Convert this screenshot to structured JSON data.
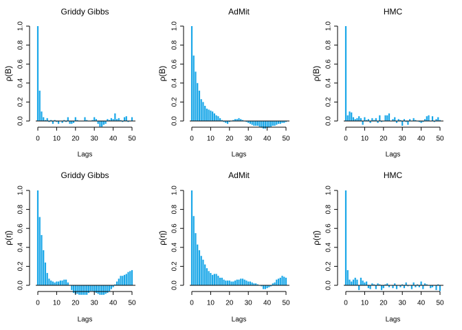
{
  "chart_data": [
    {
      "type": "bar",
      "title": "Griddy Gibbs",
      "xlabel": "Lags",
      "ylabel": "ρ(B)",
      "ylim": [
        0,
        1
      ],
      "yticks": [
        "0.0",
        "0.2",
        "0.4",
        "0.6",
        "0.8",
        "1.0"
      ],
      "xticks": [
        "0",
        "10",
        "20",
        "30",
        "40",
        "50"
      ],
      "x": [
        0,
        1,
        2,
        3,
        4,
        5,
        6,
        7,
        8,
        9,
        10,
        11,
        12,
        13,
        14,
        15,
        16,
        17,
        18,
        19,
        20,
        21,
        22,
        23,
        24,
        25,
        26,
        27,
        28,
        29,
        30,
        31,
        32,
        33,
        34,
        35,
        36,
        37,
        38,
        39,
        40,
        41,
        42,
        43,
        44,
        45,
        46,
        47,
        48,
        49,
        50
      ],
      "values": [
        1.0,
        0.32,
        0.1,
        0.04,
        0.01,
        0.03,
        -0.01,
        0.01,
        -0.03,
        0.01,
        -0.01,
        -0.03,
        0.0,
        -0.02,
        0.01,
        -0.01,
        0.04,
        -0.03,
        -0.03,
        -0.02,
        0.04,
        0.01,
        0.0,
        0.0,
        0.0,
        0.04,
        0.01,
        0.0,
        0.0,
        0.01,
        0.04,
        0.02,
        -0.03,
        -0.06,
        -0.06,
        -0.04,
        -0.03,
        0.02,
        0.01,
        0.03,
        0.02,
        0.08,
        0.02,
        0.03,
        0.01,
        -0.01,
        0.04,
        0.05,
        -0.01,
        0.0,
        0.04
      ]
    },
    {
      "type": "bar",
      "title": "AdMit",
      "xlabel": "Lags",
      "ylabel": "ρ(B)",
      "ylim": [
        0,
        1
      ],
      "yticks": [
        "0.0",
        "0.2",
        "0.4",
        "0.6",
        "0.8",
        "1.0"
      ],
      "xticks": [
        "0",
        "10",
        "20",
        "30",
        "40",
        "50"
      ],
      "x": [
        0,
        1,
        2,
        3,
        4,
        5,
        6,
        7,
        8,
        9,
        10,
        11,
        12,
        13,
        14,
        15,
        16,
        17,
        18,
        19,
        20,
        21,
        22,
        23,
        24,
        25,
        26,
        27,
        28,
        29,
        30,
        31,
        32,
        33,
        34,
        35,
        36,
        37,
        38,
        39,
        40,
        41,
        42,
        43,
        44,
        45,
        46,
        47,
        48,
        49,
        50
      ],
      "values": [
        1.0,
        0.69,
        0.52,
        0.4,
        0.32,
        0.23,
        0.2,
        0.16,
        0.13,
        0.12,
        0.11,
        0.1,
        0.08,
        0.06,
        0.05,
        0.03,
        0.01,
        -0.01,
        -0.02,
        -0.03,
        -0.01,
        0.0,
        0.01,
        0.02,
        0.02,
        0.03,
        0.02,
        0.01,
        0.0,
        -0.01,
        -0.02,
        -0.03,
        -0.04,
        -0.05,
        -0.05,
        -0.05,
        -0.06,
        -0.07,
        -0.08,
        -0.08,
        -0.07,
        -0.07,
        -0.06,
        -0.05,
        -0.05,
        -0.04,
        -0.03,
        -0.03,
        -0.02,
        -0.02,
        -0.01
      ]
    },
    {
      "type": "bar",
      "title": "HMC",
      "xlabel": "Lags",
      "ylabel": "ρ(B)",
      "ylim": [
        0,
        1
      ],
      "yticks": [
        "0.0",
        "0.2",
        "0.4",
        "0.6",
        "0.8",
        "1.0"
      ],
      "xticks": [
        "0",
        "10",
        "20",
        "30",
        "40",
        "50"
      ],
      "x": [
        0,
        1,
        2,
        3,
        4,
        5,
        6,
        7,
        8,
        9,
        10,
        11,
        12,
        13,
        14,
        15,
        16,
        17,
        18,
        19,
        20,
        21,
        22,
        23,
        24,
        25,
        26,
        27,
        28,
        29,
        30,
        31,
        32,
        33,
        34,
        35,
        36,
        37,
        38,
        39,
        40,
        41,
        42,
        43,
        44,
        45,
        46,
        47,
        48,
        49,
        50
      ],
      "values": [
        1.0,
        0.06,
        0.1,
        0.09,
        0.04,
        0.02,
        0.03,
        0.05,
        0.03,
        -0.04,
        0.04,
        0.01,
        0.02,
        -0.02,
        0.03,
        0.01,
        0.03,
        -0.02,
        0.06,
        -0.01,
        0.0,
        0.06,
        0.06,
        0.08,
        0.0,
        0.02,
        0.04,
        -0.02,
        0.02,
        0.01,
        -0.05,
        0.02,
        -0.01,
        -0.04,
        0.02,
        0.0,
        0.03,
        0.01,
        0.0,
        -0.01,
        -0.02,
        -0.01,
        0.02,
        0.05,
        0.06,
        0.0,
        0.05,
        -0.01,
        0.02,
        0.04,
        0.01
      ]
    },
    {
      "type": "bar",
      "title": "Griddy Gibbs",
      "xlabel": "Lags",
      "ylabel": "ρ(η̄)",
      "ylim": [
        0,
        1
      ],
      "yticks": [
        "0.0",
        "0.2",
        "0.4",
        "0.6",
        "0.8",
        "1.0"
      ],
      "xticks": [
        "0",
        "10",
        "20",
        "30",
        "40",
        "50"
      ],
      "x": [
        0,
        1,
        2,
        3,
        4,
        5,
        6,
        7,
        8,
        9,
        10,
        11,
        12,
        13,
        14,
        15,
        16,
        17,
        18,
        19,
        20,
        21,
        22,
        23,
        24,
        25,
        26,
        27,
        28,
        29,
        30,
        31,
        32,
        33,
        34,
        35,
        36,
        37,
        38,
        39,
        40,
        41,
        42,
        43,
        44,
        45,
        46,
        47,
        48,
        49,
        50
      ],
      "values": [
        1.0,
        0.72,
        0.53,
        0.37,
        0.24,
        0.13,
        0.07,
        0.05,
        0.04,
        0.03,
        0.04,
        0.04,
        0.05,
        0.05,
        0.06,
        0.06,
        0.03,
        0.0,
        -0.05,
        -0.08,
        -0.09,
        -0.09,
        -0.1,
        -0.1,
        -0.1,
        -0.1,
        -0.1,
        -0.08,
        -0.06,
        -0.06,
        -0.07,
        -0.08,
        -0.09,
        -0.1,
        -0.1,
        -0.1,
        -0.09,
        -0.08,
        -0.06,
        -0.04,
        -0.02,
        0.01,
        0.04,
        0.07,
        0.1,
        0.1,
        0.11,
        0.12,
        0.14,
        0.15,
        0.16
      ]
    },
    {
      "type": "bar",
      "title": "AdMit",
      "xlabel": "Lags",
      "ylabel": "ρ(η̄)",
      "ylim": [
        0,
        1
      ],
      "yticks": [
        "0.0",
        "0.2",
        "0.4",
        "0.6",
        "0.8",
        "1.0"
      ],
      "xticks": [
        "0",
        "10",
        "20",
        "30",
        "40",
        "50"
      ],
      "x": [
        0,
        1,
        2,
        3,
        4,
        5,
        6,
        7,
        8,
        9,
        10,
        11,
        12,
        13,
        14,
        15,
        16,
        17,
        18,
        19,
        20,
        21,
        22,
        23,
        24,
        25,
        26,
        27,
        28,
        29,
        30,
        31,
        32,
        33,
        34,
        35,
        36,
        37,
        38,
        39,
        40,
        41,
        42,
        43,
        44,
        45,
        46,
        47,
        48,
        49,
        50
      ],
      "values": [
        1.0,
        0.73,
        0.55,
        0.43,
        0.37,
        0.31,
        0.27,
        0.22,
        0.18,
        0.15,
        0.13,
        0.11,
        0.12,
        0.12,
        0.1,
        0.08,
        0.08,
        0.06,
        0.05,
        0.05,
        0.05,
        0.04,
        0.04,
        0.05,
        0.06,
        0.06,
        0.07,
        0.07,
        0.06,
        0.05,
        0.04,
        0.04,
        0.03,
        0.02,
        0.02,
        0.01,
        0.0,
        -0.01,
        -0.04,
        -0.04,
        -0.03,
        -0.02,
        -0.01,
        0.02,
        0.03,
        0.06,
        0.07,
        0.08,
        0.1,
        0.09,
        0.08
      ]
    },
    {
      "type": "bar",
      "title": "HMC",
      "xlabel": "Lags",
      "ylabel": "ρ(η̄)",
      "ylim": [
        0,
        1
      ],
      "yticks": [
        "0.0",
        "0.2",
        "0.4",
        "0.6",
        "0.8",
        "1.0"
      ],
      "xticks": [
        "0",
        "10",
        "20",
        "30",
        "40",
        "50"
      ],
      "x": [
        0,
        1,
        2,
        3,
        4,
        5,
        6,
        7,
        8,
        9,
        10,
        11,
        12,
        13,
        14,
        15,
        16,
        17,
        18,
        19,
        20,
        21,
        22,
        23,
        24,
        25,
        26,
        27,
        28,
        29,
        30,
        31,
        32,
        33,
        34,
        35,
        36,
        37,
        38,
        39,
        40,
        41,
        42,
        43,
        44,
        45,
        46,
        47,
        48,
        49,
        50
      ],
      "values": [
        1.0,
        0.16,
        0.06,
        0.04,
        0.06,
        0.08,
        0.06,
        -0.05,
        0.08,
        0.05,
        0.03,
        0.04,
        -0.03,
        -0.04,
        0.02,
        0.01,
        -0.04,
        0.02,
        0.01,
        -0.05,
        -0.03,
        0.01,
        0.02,
        -0.02,
        0.0,
        -0.03,
        0.02,
        -0.04,
        0.0,
        -0.02,
        0.01,
        -0.03,
        0.03,
        -0.01,
        0.0,
        -0.04,
        0.03,
        -0.02,
        0.01,
        -0.02,
        0.04,
        -0.04,
        0.02,
        0.01,
        0.0,
        -0.03,
        -0.02,
        0.0,
        -0.05,
        0.01,
        -0.06
      ]
    }
  ],
  "colors": {
    "bar": "#1aa7e8",
    "axis": "#000000"
  }
}
